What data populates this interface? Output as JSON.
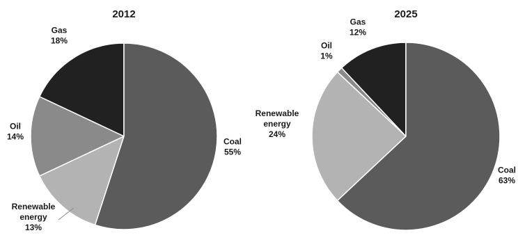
{
  "chart_data": [
    {
      "type": "pie",
      "title": "2012",
      "slices": [
        {
          "label": [
            "Coal"
          ],
          "value": 55,
          "value_label": "55%",
          "color": "#5b5b5b"
        },
        {
          "label": [
            "Renewable",
            "energy"
          ],
          "value": 13,
          "value_label": "13%",
          "color": "#b3b3b3"
        },
        {
          "label": [
            "Oil"
          ],
          "value": 14,
          "value_label": "14%",
          "color": "#8a8a8a"
        },
        {
          "label": [
            "Gas"
          ],
          "value": 18,
          "value_label": "18%",
          "color": "#212121"
        }
      ]
    },
    {
      "type": "pie",
      "title": "2025",
      "slices": [
        {
          "label": [
            "Coal"
          ],
          "value": 63,
          "value_label": "63%",
          "color": "#5b5b5b"
        },
        {
          "label": [
            "Renewable",
            "energy"
          ],
          "value": 24,
          "value_label": "24%",
          "color": "#b3b3b3"
        },
        {
          "label": [
            "Oil"
          ],
          "value": 1,
          "value_label": "1%",
          "color": "#8a8a8a"
        },
        {
          "label": [
            "Gas"
          ],
          "value": 12,
          "value_label": "12%",
          "color": "#212121"
        }
      ]
    }
  ]
}
